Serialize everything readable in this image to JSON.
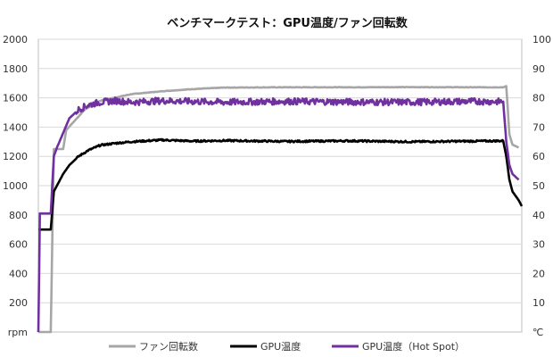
{
  "chart_data": {
    "type": "line",
    "title": "ベンチマークテスト：GPU温度/ファン回転数",
    "y_left": {
      "unit": "rpm",
      "ticks": [
        "2000",
        "1800",
        "1600",
        "1400",
        "1200",
        "1000",
        "800",
        "600",
        "400",
        "200"
      ],
      "range": [
        0,
        2000
      ]
    },
    "y_right": {
      "unit": "℃",
      "ticks": [
        "100",
        "90",
        "80",
        "70",
        "60",
        "50",
        "40",
        "30",
        "20",
        "10"
      ],
      "range": [
        0,
        100
      ]
    },
    "grid": true,
    "legend_position": "bottom",
    "series": [
      {
        "name": "ファン回転数",
        "axis": "left",
        "color": "#a6a6a6",
        "points": [
          [
            0,
            0
          ],
          [
            4,
            0
          ],
          [
            5,
            1250
          ],
          [
            8,
            1250
          ],
          [
            9,
            1380
          ],
          [
            12,
            1450
          ],
          [
            15,
            1520
          ],
          [
            20,
            1580
          ],
          [
            30,
            1625
          ],
          [
            40,
            1645
          ],
          [
            50,
            1660
          ],
          [
            60,
            1670
          ],
          [
            80,
            1672
          ],
          [
            100,
            1672
          ],
          [
            120,
            1673
          ],
          [
            140,
            1672
          ],
          [
            150,
            1672
          ],
          [
            151,
            1680
          ],
          [
            152,
            1350
          ],
          [
            153,
            1280
          ],
          [
            155,
            1260
          ]
        ]
      },
      {
        "name": "GPU温度",
        "axis": "right",
        "color": "#000000",
        "points": [
          [
            0,
            35
          ],
          [
            4,
            35
          ],
          [
            5,
            48
          ],
          [
            6,
            50
          ],
          [
            8,
            54
          ],
          [
            10,
            57
          ],
          [
            13,
            60
          ],
          [
            16,
            62
          ],
          [
            20,
            63.8
          ],
          [
            25,
            64.5
          ],
          [
            30,
            65
          ],
          [
            40,
            65.6
          ],
          [
            50,
            65.2
          ],
          [
            60,
            65.4
          ],
          [
            80,
            65.1
          ],
          [
            100,
            65.3
          ],
          [
            120,
            65
          ],
          [
            140,
            65.2
          ],
          [
            150,
            65.3
          ],
          [
            151,
            60
          ],
          [
            152,
            52
          ],
          [
            153,
            48
          ],
          [
            155,
            45
          ],
          [
            156,
            43
          ]
        ]
      },
      {
        "name": "GPU温度（Hot Spot）",
        "axis": "right",
        "color": "#7030a0",
        "points": [
          [
            0,
            0
          ],
          [
            0.5,
            40.5
          ],
          [
            4,
            40.5
          ],
          [
            5,
            60
          ],
          [
            6,
            63
          ],
          [
            8,
            68
          ],
          [
            10,
            73
          ],
          [
            13,
            76
          ],
          [
            16,
            77.5
          ],
          [
            20,
            78.5
          ],
          [
            25,
            79
          ],
          [
            30,
            78.5
          ],
          [
            40,
            79
          ],
          [
            60,
            78.5
          ],
          [
            80,
            78.8
          ],
          [
            100,
            78.6
          ],
          [
            120,
            78.5
          ],
          [
            140,
            78.8
          ],
          [
            150,
            78.7
          ],
          [
            151,
            65
          ],
          [
            152,
            57
          ],
          [
            153,
            54
          ],
          [
            155,
            52
          ]
        ]
      }
    ]
  }
}
